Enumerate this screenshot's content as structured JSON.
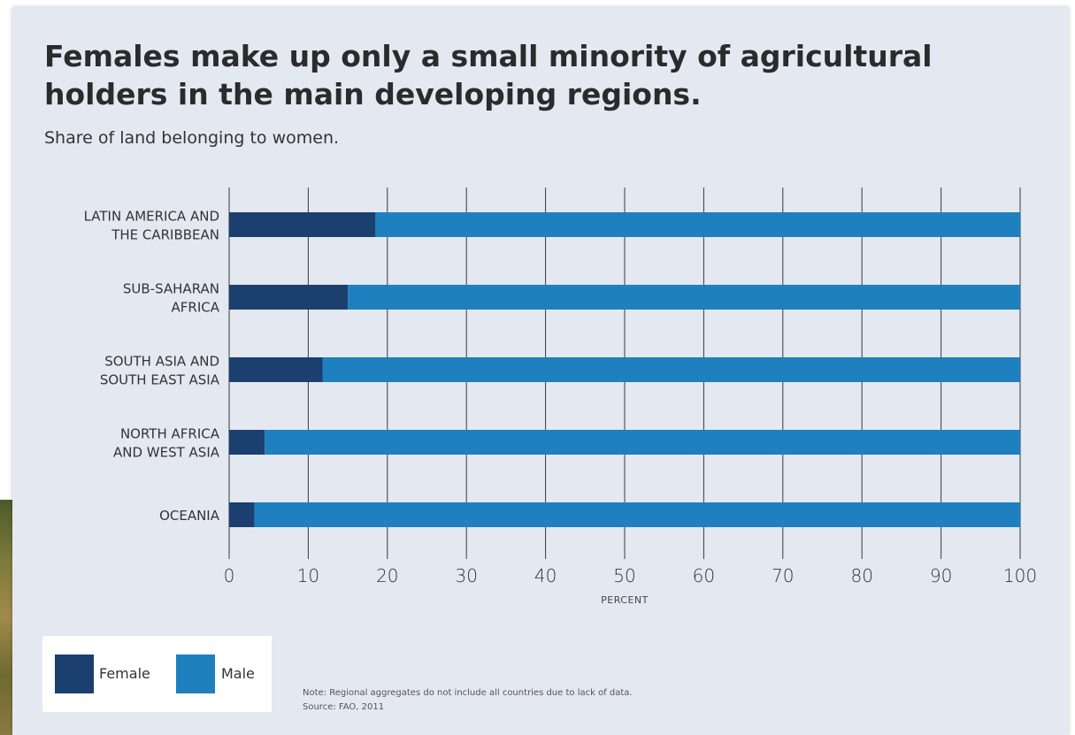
{
  "chart_data": {
    "type": "bar",
    "orientation": "horizontal",
    "stacked": true,
    "title": "Females make up only a small minority of agricultural holders in the main developing regions.",
    "subtitle": "Share of land belonging to women.",
    "xlabel": "PERCENT",
    "xlim": [
      0,
      100
    ],
    "xticks": [
      "0",
      "10",
      "20",
      "30",
      "40",
      "50",
      "60",
      "70",
      "80",
      "90",
      "100"
    ],
    "categories": [
      [
        "LATIN AMERICA AND",
        "THE CARIBBEAN"
      ],
      [
        "SUB-SAHARAN",
        "AFRICA"
      ],
      [
        "SOUTH ASIA AND",
        "SOUTH EAST ASIA"
      ],
      [
        "NORTH AFRICA",
        "AND WEST ASIA"
      ],
      [
        "OCEANIA"
      ]
    ],
    "series": [
      {
        "name": "Female",
        "color": "#1b3f6e",
        "values": [
          18.5,
          15,
          11.8,
          4.5,
          3.2
        ]
      },
      {
        "name": "Male",
        "color": "#1e80bf",
        "values": [
          81.5,
          85,
          88.2,
          95.5,
          96.8
        ]
      }
    ],
    "grid": true,
    "legend": "bottom-left"
  },
  "legend": {
    "female_label": "Female",
    "male_label": "Male"
  },
  "note": {
    "line1": "Note: Regional aggregates do not include all countries due to lack of data.",
    "line2": "Source: FAO, 2011"
  }
}
